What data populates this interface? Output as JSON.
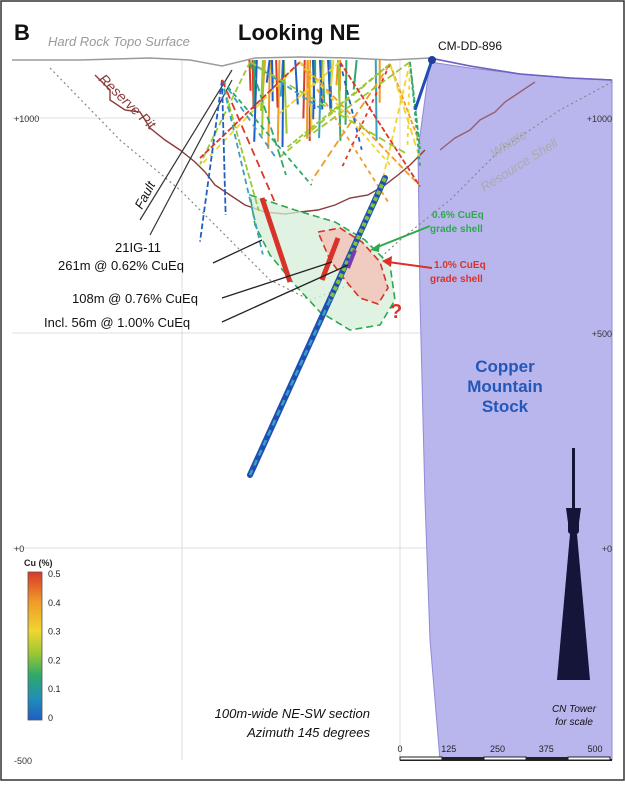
{
  "panel": {
    "letter": "B",
    "title": "Looking NE"
  },
  "labels": {
    "topo_surface": "Hard Rock Topo Surface",
    "reserve_pit": "Reserve Pit",
    "fault": "Fault",
    "whittle_line1": "Whittle",
    "whittle_line2": "Resource Shell",
    "drillhole_ref": "CM-DD-896",
    "hole_name": "21IG-11",
    "intercept1": "261m @ 0.62% CuEq",
    "intercept2": "108m @ 0.76% CuEq",
    "intercept3": "Incl. 56m @ 1.00% CuEq",
    "shell_low_line1": "0.6% CuEq",
    "shell_low_line2": "grade shell",
    "shell_high_line1": "1.0% CuEq",
    "shell_high_line2": "grade shell",
    "question": "?",
    "stock_line1": "Copper",
    "stock_line2": "Mountain",
    "stock_line3": "Stock",
    "tower_line1": "CN Tower",
    "tower_line2": "for scale",
    "section_line1": "100m-wide NE-SW section",
    "section_line2": "Azimuth 145 degrees"
  },
  "elevations": {
    "e1000": "+1000",
    "e500": "+500",
    "e0": "+0",
    "em500": "-500"
  },
  "scale_bar": {
    "ticks": [
      "0",
      "125",
      "250",
      "375",
      "500"
    ]
  },
  "legend": {
    "title": "Cu (%)",
    "ticks": [
      "0.5",
      "0.4",
      "0.3",
      "0.2",
      "0.1",
      "0"
    ]
  },
  "colors": {
    "stock": "#b9b6ee",
    "shell_low": "#2ea84f",
    "shell_high": "#d9322a",
    "shell_fill": "#d6efd8",
    "shell_high_fill": "#f1c4b8",
    "reserve_pit": "#8b3a3a",
    "stock_text": "#2457b8",
    "topo": "#9a9a9a"
  }
}
